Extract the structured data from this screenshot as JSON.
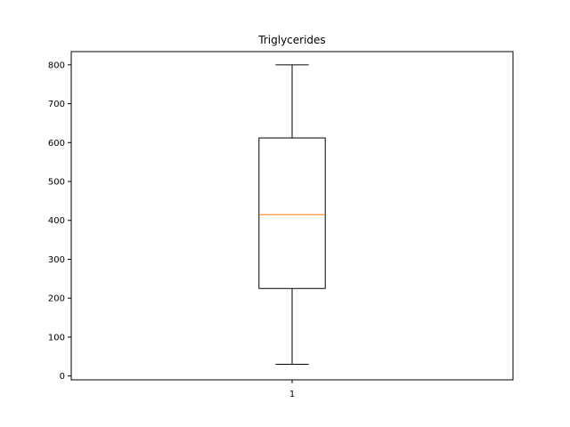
{
  "chart_data": {
    "type": "boxplot",
    "title": "Triglycerides",
    "xlabel": "",
    "ylabel": "",
    "categories": [
      "1"
    ],
    "boxes": [
      {
        "label": "1",
        "whisker_low": 30,
        "q1": 225,
        "median": 415,
        "q3": 612,
        "whisker_high": 800
      }
    ],
    "ylim": [
      -10,
      834
    ],
    "yticks": [
      0,
      100,
      200,
      300,
      400,
      500,
      600,
      700,
      800
    ],
    "grid": false,
    "colors": {
      "box": "#000000",
      "median": "#ff7f0e",
      "axes": "#000000"
    }
  }
}
